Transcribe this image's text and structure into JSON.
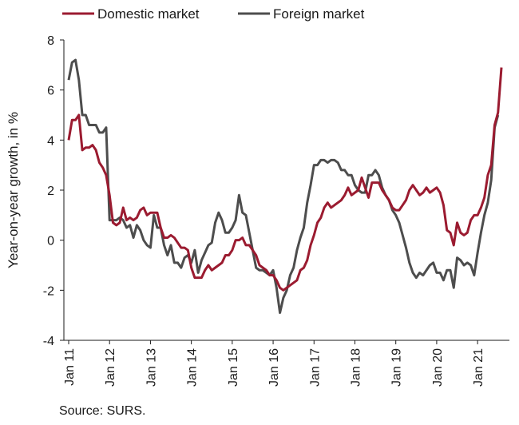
{
  "source": "Source: SURS.",
  "chart_data": {
    "type": "line",
    "title": "",
    "ylabel": "Year-on-year growth, in %",
    "xlabel": "",
    "ylim": [
      -4,
      8
    ],
    "yticks": [
      "8",
      "6",
      "4",
      "2",
      "0",
      "-2",
      "-4"
    ],
    "grid": false,
    "legend": "top-left",
    "x_start": "Jan 11",
    "x_tick_labels": [
      "Jan 11",
      "Jan 12",
      "Jan 13",
      "Jan 14",
      "Jan 15",
      "Jan 16",
      "Jan 17",
      "Jan 18",
      "Jan 19",
      "Jan 20",
      "Jan 21"
    ],
    "series": [
      {
        "name": "Domestic market",
        "color": "#9b1b30",
        "values": [
          4.0,
          4.8,
          4.8,
          5.0,
          3.6,
          3.7,
          3.7,
          3.8,
          3.6,
          3.1,
          2.9,
          2.6,
          1.8,
          0.7,
          0.6,
          0.7,
          1.3,
          0.8,
          0.9,
          0.8,
          0.9,
          1.2,
          1.3,
          1.0,
          1.1,
          1.1,
          1.1,
          0.5,
          0.1,
          0.1,
          0.2,
          0.1,
          -0.1,
          -0.3,
          -0.3,
          -0.4,
          -1.1,
          -1.5,
          -1.5,
          -1.5,
          -1.2,
          -1.0,
          -1.2,
          -1.1,
          -1.0,
          -0.9,
          -0.6,
          -0.6,
          -0.4,
          0.0,
          0.0,
          0.1,
          -0.2,
          -0.2,
          -0.4,
          -0.6,
          -1.0,
          -1.1,
          -1.2,
          -1.4,
          -1.4,
          -1.6,
          -1.9,
          -2.0,
          -1.9,
          -1.8,
          -1.7,
          -1.6,
          -1.2,
          -1.1,
          -0.8,
          -0.2,
          0.2,
          0.7,
          0.9,
          1.3,
          1.5,
          1.3,
          1.4,
          1.5,
          1.6,
          1.8,
          2.1,
          1.8,
          1.9,
          2.0,
          2.5,
          2.1,
          1.7,
          2.3,
          2.3,
          2.3,
          2.0,
          1.8,
          1.6,
          1.3,
          1.2,
          1.2,
          1.4,
          1.6,
          2.0,
          2.2,
          2.0,
          1.8,
          1.9,
          2.1,
          1.9,
          2.0,
          2.1,
          1.9,
          1.4,
          0.4,
          0.3,
          -0.2,
          0.7,
          0.3,
          0.2,
          0.3,
          0.8,
          1.0,
          1.0,
          1.3,
          1.7,
          2.6,
          3.0,
          4.6,
          5.1,
          6.9
        ]
      },
      {
        "name": "Foreign market",
        "color": "#4d4d4d",
        "values": [
          6.4,
          7.1,
          7.2,
          6.4,
          5.0,
          5.0,
          4.6,
          4.6,
          4.6,
          4.3,
          4.3,
          4.5,
          0.8,
          0.8,
          0.8,
          0.9,
          0.8,
          0.5,
          0.6,
          0.1,
          0.6,
          0.4,
          0.0,
          -0.2,
          -0.3,
          1.0,
          0.5,
          0.5,
          -0.2,
          -0.6,
          -0.2,
          -0.9,
          -0.9,
          -1.1,
          -0.7,
          -0.6,
          -0.9,
          -0.4,
          -1.3,
          -0.8,
          -0.5,
          -0.2,
          -0.1,
          0.7,
          1.1,
          0.8,
          0.3,
          0.3,
          0.5,
          0.8,
          1.8,
          1.1,
          1.0,
          0.3,
          -0.4,
          -1.1,
          -1.2,
          -1.2,
          -1.3,
          -1.4,
          -1.2,
          -1.9,
          -2.9,
          -2.3,
          -2.0,
          -1.4,
          -1.1,
          -0.4,
          0.1,
          0.5,
          1.5,
          2.2,
          3.0,
          3.0,
          3.2,
          3.2,
          3.1,
          3.2,
          3.2,
          3.1,
          2.8,
          2.8,
          2.6,
          2.6,
          2.2,
          2.0,
          1.9,
          1.9,
          2.6,
          2.6,
          2.8,
          2.6,
          2.1,
          1.8,
          1.6,
          1.2,
          1.0,
          0.7,
          0.2,
          -0.3,
          -0.9,
          -1.3,
          -1.5,
          -1.3,
          -1.4,
          -1.2,
          -1.0,
          -0.9,
          -1.3,
          -1.3,
          -1.6,
          -1.2,
          -1.2,
          -1.9,
          -0.7,
          -0.8,
          -1.0,
          -0.9,
          -1.0,
          -1.4,
          -0.5,
          0.3,
          1.0,
          1.5,
          2.4,
          4.5,
          5.0
        ]
      }
    ]
  }
}
